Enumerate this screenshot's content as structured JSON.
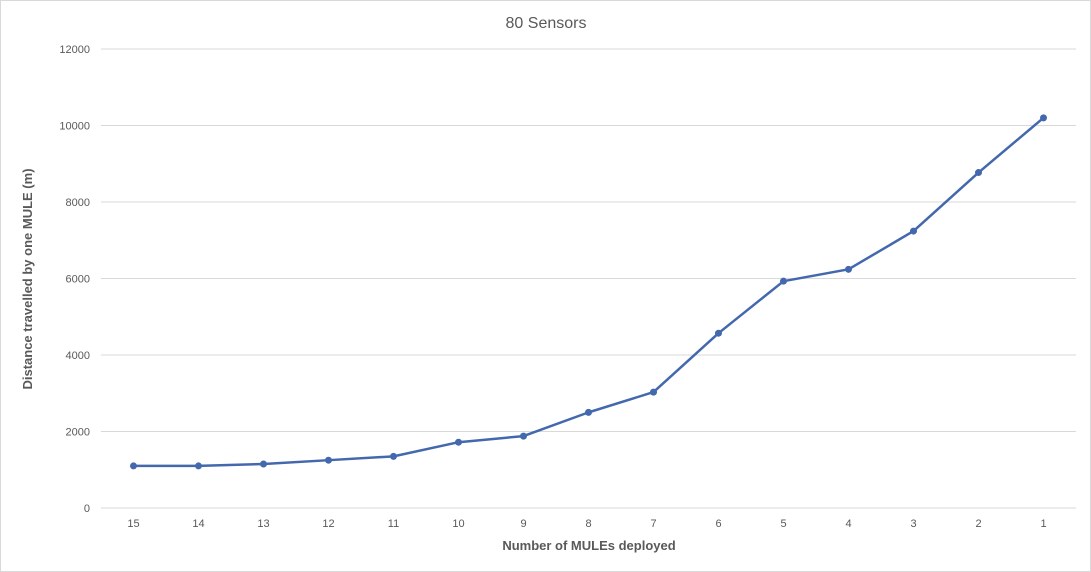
{
  "chart_data": {
    "type": "line",
    "title": "80 Sensors",
    "xlabel": "Number of MULEs deployed",
    "ylabel": "Distance travelled by one MULE (m)",
    "categories": [
      "15",
      "14",
      "13",
      "12",
      "11",
      "10",
      "9",
      "8",
      "7",
      "6",
      "5",
      "4",
      "3",
      "2",
      "1"
    ],
    "series": [
      {
        "values": [
          1100,
          1100,
          1150,
          1250,
          1350,
          1720,
          1880,
          2500,
          3030,
          4570,
          5930,
          6240,
          7240,
          8770,
          10200
        ],
        "color": "#4368ad"
      }
    ],
    "ylim": [
      0,
      12000
    ],
    "yticks": [
      "0",
      "2000",
      "4000",
      "6000",
      "8000",
      "10000",
      "12000"
    ],
    "grid": true,
    "legend": "none"
  }
}
